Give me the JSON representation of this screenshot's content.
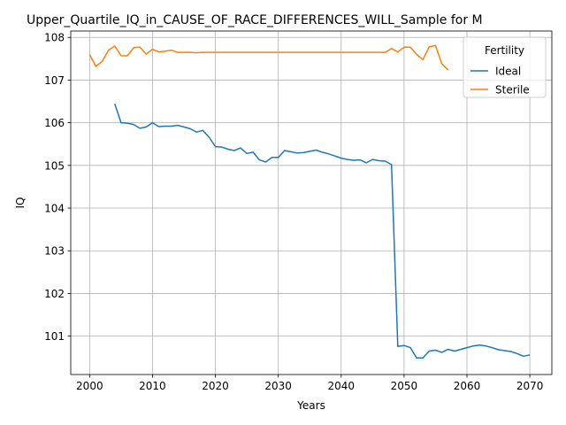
{
  "chart_data": {
    "type": "line",
    "title": "Upper_Quartile_IQ_in_CAUSE_OF_RACE_DIFFERENCES_WILL_Sample for M",
    "xlabel": "Years",
    "ylabel": "IQ",
    "xlim": [
      1997,
      2073.5
    ],
    "ylim": [
      100.1,
      108.15
    ],
    "xticks": [
      2000,
      2010,
      2020,
      2030,
      2040,
      2050,
      2060,
      2070
    ],
    "yticks": [
      101,
      102,
      103,
      104,
      105,
      106,
      107,
      108
    ],
    "grid": true,
    "legend": {
      "title": "Fertility",
      "position": "top-right"
    },
    "series": [
      {
        "name": "Ideal",
        "color": "#1f77b4",
        "x": [
          2004,
          2005,
          2006,
          2007,
          2008,
          2009,
          2010,
          2011,
          2012,
          2013,
          2014,
          2015,
          2016,
          2017,
          2018,
          2019,
          2020,
          2021,
          2022,
          2023,
          2024,
          2025,
          2026,
          2027,
          2028,
          2029,
          2030,
          2031,
          2032,
          2033,
          2034,
          2035,
          2036,
          2037,
          2038,
          2039,
          2040,
          2041,
          2042,
          2043,
          2044,
          2045,
          2046,
          2047,
          2048,
          2049,
          2050,
          2051,
          2052,
          2053,
          2054,
          2055,
          2056,
          2057,
          2058,
          2059,
          2060,
          2061,
          2062,
          2063,
          2064,
          2065,
          2066,
          2067,
          2068,
          2069,
          2070
        ],
        "values": [
          106.44,
          106.0,
          105.99,
          105.96,
          105.87,
          105.9,
          106.0,
          105.91,
          105.92,
          105.92,
          105.94,
          105.9,
          105.86,
          105.78,
          105.82,
          105.66,
          105.44,
          105.43,
          105.38,
          105.35,
          105.41,
          105.28,
          105.31,
          105.13,
          105.08,
          105.19,
          105.19,
          105.35,
          105.32,
          105.29,
          105.3,
          105.33,
          105.36,
          105.31,
          105.27,
          105.22,
          105.17,
          105.14,
          105.12,
          105.13,
          105.06,
          105.14,
          105.11,
          105.1,
          105.02,
          100.76,
          100.78,
          100.73,
          100.49,
          100.49,
          100.65,
          100.67,
          100.62,
          100.69,
          100.65,
          100.69,
          100.73,
          100.77,
          100.79,
          100.77,
          100.73,
          100.68,
          100.66,
          100.64,
          100.59,
          100.53,
          100.56
        ]
      },
      {
        "name": "Sterile",
        "color": "#ff7f0e",
        "x": [
          2000,
          2001,
          2002,
          2003,
          2004,
          2005,
          2006,
          2007,
          2008,
          2009,
          2010,
          2011,
          2012,
          2013,
          2014,
          2015,
          2016,
          2017,
          2018,
          2019,
          2020,
          2021,
          2022,
          2023,
          2024,
          2025,
          2026,
          2027,
          2028,
          2029,
          2030,
          2031,
          2032,
          2033,
          2034,
          2035,
          2036,
          2037,
          2038,
          2039,
          2040,
          2041,
          2042,
          2043,
          2044,
          2045,
          2046,
          2047,
          2048,
          2049,
          2050,
          2051,
          2052,
          2053,
          2054,
          2055,
          2056,
          2057
        ],
        "values": [
          107.6,
          107.32,
          107.44,
          107.7,
          107.8,
          107.57,
          107.57,
          107.76,
          107.77,
          107.61,
          107.72,
          107.66,
          107.68,
          107.7,
          107.65,
          107.65,
          107.65,
          107.64,
          107.65,
          107.65,
          107.65,
          107.65,
          107.65,
          107.65,
          107.65,
          107.65,
          107.65,
          107.65,
          107.65,
          107.65,
          107.65,
          107.65,
          107.65,
          107.65,
          107.65,
          107.65,
          107.65,
          107.65,
          107.65,
          107.65,
          107.65,
          107.65,
          107.65,
          107.65,
          107.65,
          107.65,
          107.65,
          107.65,
          107.74,
          107.66,
          107.77,
          107.77,
          107.6,
          107.48,
          107.78,
          107.81,
          107.38,
          107.24
        ]
      }
    ]
  }
}
